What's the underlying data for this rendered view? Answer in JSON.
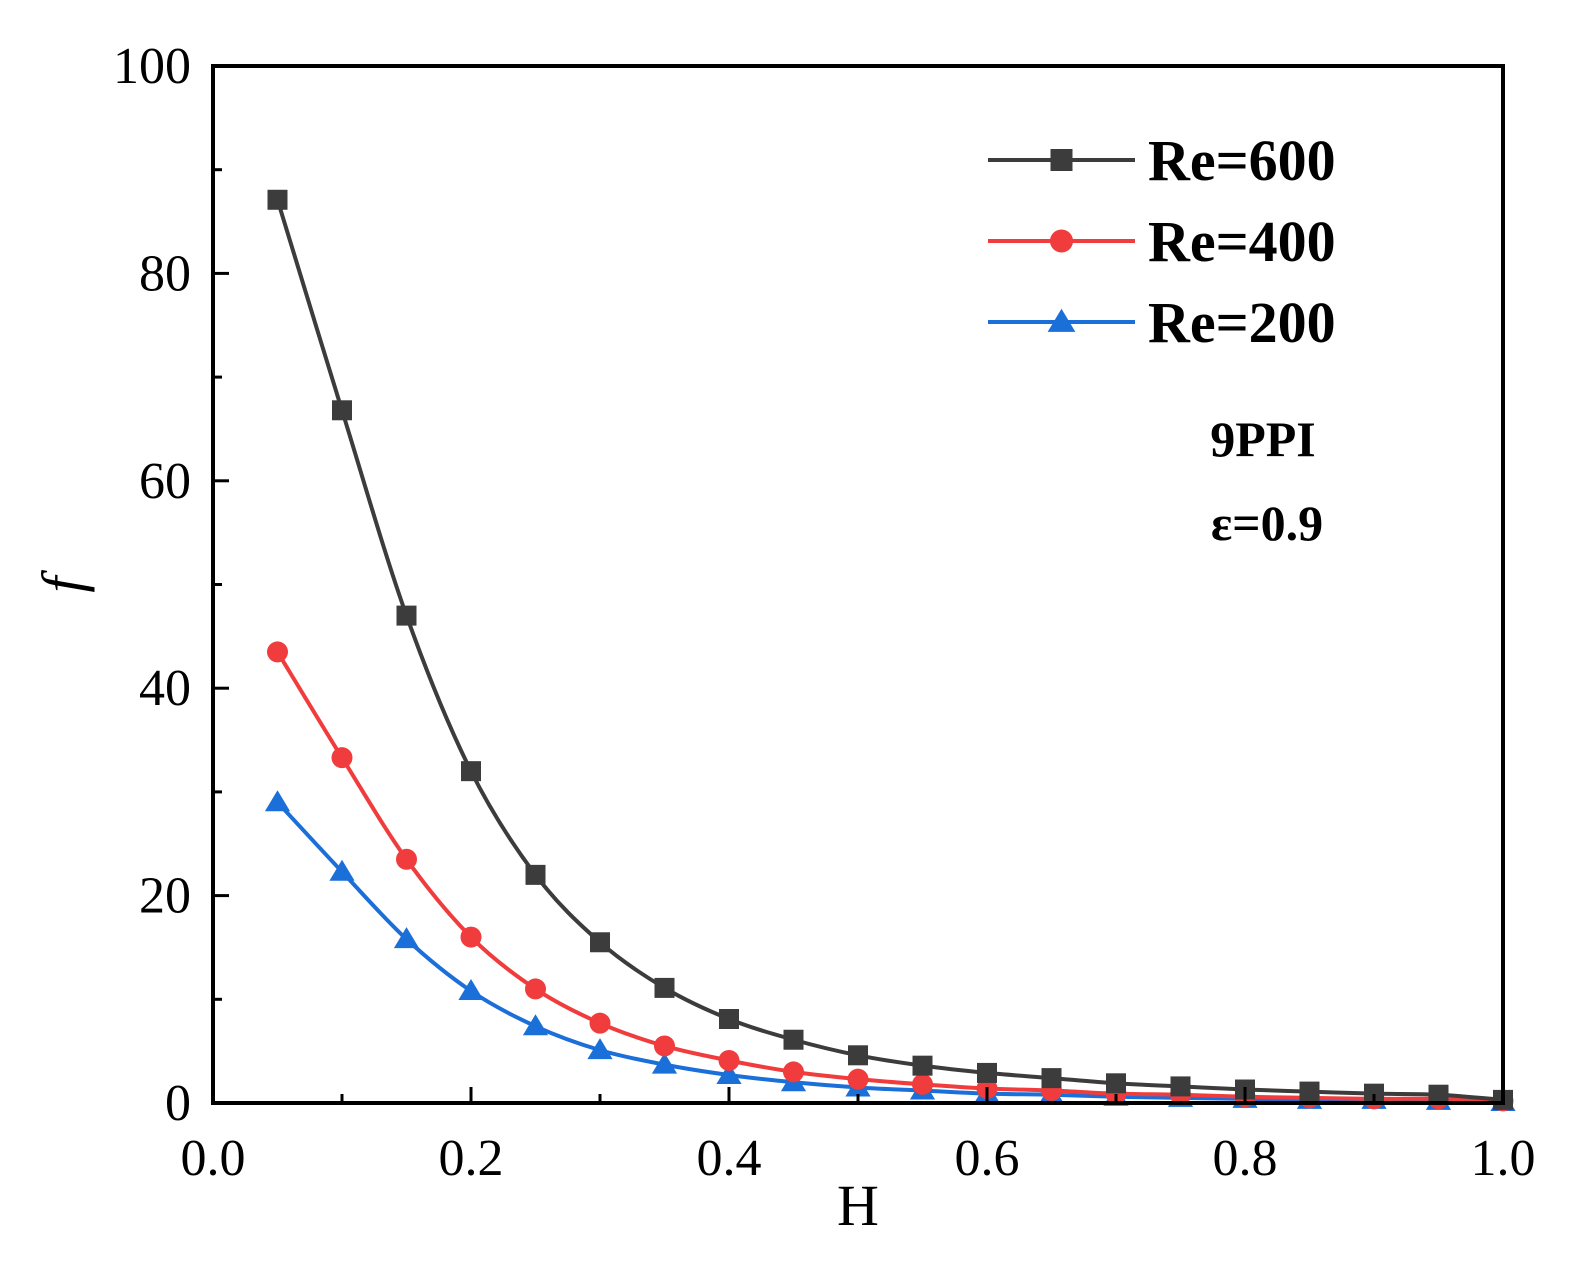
{
  "chart_data": {
    "type": "line",
    "title": "",
    "xlabel": "H",
    "ylabel": "f",
    "xlim": [
      0.0,
      1.0
    ],
    "ylim": [
      0,
      100
    ],
    "x_ticks": [
      "0.0",
      "0.2",
      "0.4",
      "0.6",
      "0.8",
      "1.0"
    ],
    "y_ticks": [
      "0",
      "20",
      "40",
      "60",
      "80",
      "100"
    ],
    "x": [
      0.05,
      0.1,
      0.15,
      0.2,
      0.25,
      0.3,
      0.35,
      0.4,
      0.45,
      0.5,
      0.55,
      0.6,
      0.65,
      0.7,
      0.75,
      0.8,
      0.85,
      0.9,
      0.95,
      1.0
    ],
    "series": [
      {
        "name": "Re=600",
        "color": "#3c3c3c",
        "marker": "square",
        "values": [
          87.1,
          66.8,
          47.0,
          32.0,
          22.0,
          15.5,
          11.1,
          8.1,
          6.1,
          4.6,
          3.6,
          2.9,
          2.4,
          1.9,
          1.6,
          1.3,
          1.1,
          0.9,
          0.8,
          0.3
        ]
      },
      {
        "name": "Re=400",
        "color": "#f03c3c",
        "marker": "circle",
        "values": [
          43.5,
          33.3,
          23.5,
          16.0,
          11.0,
          7.7,
          5.5,
          4.1,
          3.0,
          2.3,
          1.8,
          1.4,
          1.2,
          0.9,
          0.8,
          0.6,
          0.5,
          0.4,
          0.4,
          0.2
        ]
      },
      {
        "name": "Re=200",
        "color": "#1a6fd8",
        "marker": "triangle",
        "values": [
          29.0,
          22.3,
          15.8,
          10.8,
          7.4,
          5.1,
          3.7,
          2.7,
          2.0,
          1.5,
          1.2,
          0.9,
          0.8,
          0.6,
          0.5,
          0.4,
          0.3,
          0.3,
          0.2,
          0.1
        ]
      }
    ],
    "legend_position": "top-right",
    "annotations": [
      "9PPI",
      "ε=0.9"
    ],
    "grid": false
  }
}
